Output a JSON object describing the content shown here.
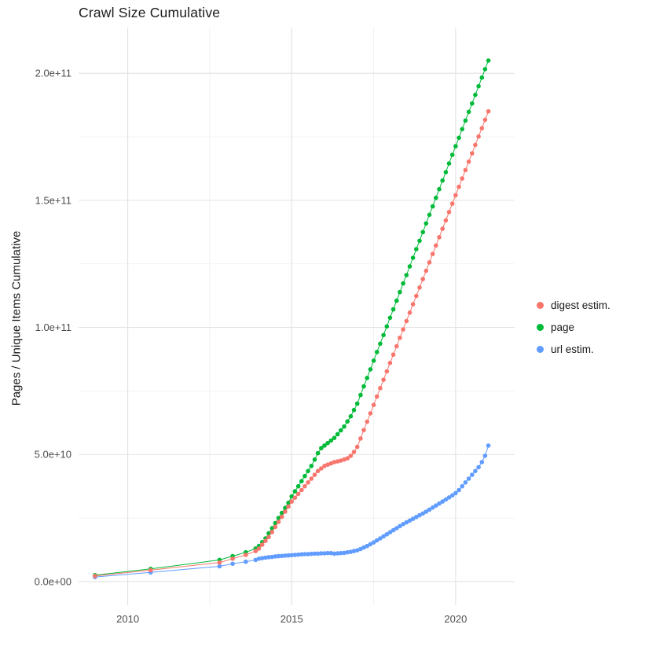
{
  "title": "Crawl Size Cumulative",
  "legend": {
    "items": [
      {
        "label": "digest estim.",
        "color": "#F8766D"
      },
      {
        "label": "page",
        "color": "#00BA38"
      },
      {
        "label": "url estim.",
        "color": "#619CFF"
      }
    ]
  },
  "colors": {
    "grid_major": "#e2e2e2",
    "grid_minor": "#f0f0f0",
    "axis_text": "#4d4d4d",
    "background": "#ffffff"
  },
  "chart_data": {
    "type": "scatter",
    "connect_points": true,
    "title": "Crawl Size Cumulative",
    "xlabel": "",
    "ylabel": "Pages / Unique Items Cumulative",
    "grid": true,
    "legend_position": "right",
    "xlim": [
      2008.5,
      2021.8
    ],
    "ylim": [
      -9300000000.0,
      218000000000.0
    ],
    "x_ticks": [
      2010,
      2015,
      2020
    ],
    "x_tick_labels": [
      "2010",
      "2015",
      "2020"
    ],
    "x_minor_ticks": [
      2012.5,
      2017.5
    ],
    "y_ticks": [
      0,
      50000000000.0,
      100000000000.0,
      150000000000.0,
      200000000000.0
    ],
    "y_tick_labels": [
      "0.0e+00",
      "5.0e+10",
      "1.0e+11",
      "1.5e+11",
      "2.0e+11"
    ],
    "y_minor_ticks": [
      25000000000.0,
      75000000000.0,
      125000000000.0,
      175000000000.0
    ],
    "x": [
      2009.0,
      2010.7,
      2012.8,
      2013.2,
      2013.6,
      2013.9,
      2014.0,
      2014.1,
      2014.2,
      2014.3,
      2014.4,
      2014.5,
      2014.6,
      2014.7,
      2014.8,
      2014.9,
      2015.0,
      2015.1,
      2015.2,
      2015.3,
      2015.4,
      2015.5,
      2015.6,
      2015.7,
      2015.8,
      2015.9,
      2016.0,
      2016.1,
      2016.2,
      2016.3,
      2016.4,
      2016.5,
      2016.6,
      2016.7,
      2016.8,
      2016.9,
      2017.0,
      2017.1,
      2017.2,
      2017.3,
      2017.4,
      2017.5,
      2017.6,
      2017.7,
      2017.8,
      2017.9,
      2018.0,
      2018.1,
      2018.2,
      2018.3,
      2018.4,
      2018.5,
      2018.6,
      2018.7,
      2018.8,
      2018.9,
      2019.0,
      2019.1,
      2019.2,
      2019.3,
      2019.4,
      2019.5,
      2019.6,
      2019.7,
      2019.8,
      2019.9,
      2020.0,
      2020.1,
      2020.2,
      2020.3,
      2020.4,
      2020.5,
      2020.6,
      2020.7,
      2020.8,
      2020.9,
      2021.0
    ],
    "series": [
      {
        "name": "digest estim.",
        "color": "#F8766D",
        "y": [
          2200000000.0,
          4500000000.0,
          7500000000.0,
          9000000000.0,
          10500000000.0,
          12000000000.0,
          13000000000.0,
          14500000000.0,
          16000000000.0,
          17500000000.0,
          19500000000.0,
          21500000000.0,
          23500000000.0,
          25500000000.0,
          27500000000.0,
          29500000000.0,
          31500000000.0,
          33000000000.0,
          34500000000.0,
          36000000000.0,
          37500000000.0,
          39000000000.0,
          40500000000.0,
          42000000000.0,
          43500000000.0,
          44500000000.0,
          45500000000.0,
          46000000000.0,
          46500000000.0,
          47000000000.0,
          47300000000.0,
          47600000000.0,
          48000000000.0,
          48500000000.0,
          49500000000.0,
          51000000000.0,
          53000000000.0,
          56300000000.0,
          59600000000.0,
          62900000000.0,
          66200000000.0,
          69500000000.0,
          72800000000.0,
          76100000000.0,
          79400000000.0,
          82700000000.0,
          86000000000.0,
          89300000000.0,
          92600000000.0,
          95900000000.0,
          99200000000.0,
          102500000000.0,
          105800000000.0,
          109100000000.0,
          112400000000.0,
          115700000000.0,
          119000000000.0,
          122300000000.0,
          125600000000.0,
          128900000000.0,
          132200000000.0,
          135500000000.0,
          138800000000.0,
          142100000000.0,
          145400000000.0,
          148700000000.0,
          152000000000.0,
          155300000000.0,
          158600000000.0,
          161900000000.0,
          165200000000.0,
          168500000000.0,
          171800000000.0,
          175100000000.0,
          178400000000.0,
          181700000000.0,
          185000000000.0
        ]
      },
      {
        "name": "page",
        "color": "#00BA38",
        "y": [
          2500000000.0,
          5000000000.0,
          8500000000.0,
          10000000000.0,
          11500000000.0,
          13000000000.0,
          14000000000.0,
          15500000000.0,
          17000000000.0,
          19000000000.0,
          21000000000.0,
          23000000000.0,
          25000000000.0,
          27000000000.0,
          29000000000.0,
          31000000000.0,
          33500000000.0,
          35500000000.0,
          37500000000.0,
          39500000000.0,
          41500000000.0,
          43500000000.0,
          45500000000.0,
          48000000000.0,
          50500000000.0,
          52500000000.0,
          53500000000.0,
          54500000000.0,
          55500000000.0,
          56500000000.0,
          58000000000.0,
          59500000000.0,
          61000000000.0,
          63000000000.0,
          65000000000.0,
          67500000000.0,
          70000000000.0,
          73400000000.0,
          76800000000.0,
          80100000000.0,
          83500000000.0,
          86900000000.0,
          90300000000.0,
          93600000000.0,
          97000000000.0,
          100400000000.0,
          103800000000.0,
          107100000000.0,
          110500000000.0,
          113900000000.0,
          117300000000.0,
          120600000000.0,
          124000000000.0,
          127400000000.0,
          130800000000.0,
          134100000000.0,
          137500000000.0,
          140900000000.0,
          144300000000.0,
          147600000000.0,
          151000000000.0,
          154400000000.0,
          157800000000.0,
          161100000000.0,
          164500000000.0,
          167900000000.0,
          171300000000.0,
          174600000000.0,
          178000000000.0,
          181400000000.0,
          184800000000.0,
          188100000000.0,
          191500000000.0,
          194900000000.0,
          198300000000.0,
          201600000000.0,
          205000000000.0
        ]
      },
      {
        "name": "url estim.",
        "color": "#619CFF",
        "y": [
          1800000000.0,
          3600000000.0,
          6000000000.0,
          7000000000.0,
          7800000000.0,
          8500000000.0,
          9000000000.0,
          9200000000.0,
          9400000000.0,
          9600000000.0,
          9700000000.0,
          9900000000.0,
          10000000000.0,
          10100000000.0,
          10200000000.0,
          10300000000.0,
          10400000000.0,
          10500000000.0,
          10600000000.0,
          10700000000.0,
          10800000000.0,
          10800000000.0,
          10900000000.0,
          11000000000.0,
          11000000000.0,
          11100000000.0,
          11100000000.0,
          11200000000.0,
          11200000000.0,
          11000000000.0,
          11100000000.0,
          11200000000.0,
          11300000000.0,
          11500000000.0,
          11700000000.0,
          12000000000.0,
          12300000000.0,
          12800000000.0,
          13400000000.0,
          14000000000.0,
          14700000000.0,
          15400000000.0,
          16200000000.0,
          17000000000.0,
          17800000000.0,
          18600000000.0,
          19400000000.0,
          20200000000.0,
          21000000000.0,
          21800000000.0,
          22600000000.0,
          23300000000.0,
          24000000000.0,
          24700000000.0,
          25400000000.0,
          26100000000.0,
          26800000000.0,
          27500000000.0,
          28300000000.0,
          29100000000.0,
          29900000000.0,
          30700000000.0,
          31500000000.0,
          32300000000.0,
          33100000000.0,
          33900000000.0,
          34800000000.0,
          36000000000.0,
          37500000000.0,
          39000000000.0,
          40500000000.0,
          42000000000.0,
          43500000000.0,
          45000000000.0,
          47000000000.0,
          49500000000.0,
          53500000000.0
        ]
      }
    ]
  }
}
